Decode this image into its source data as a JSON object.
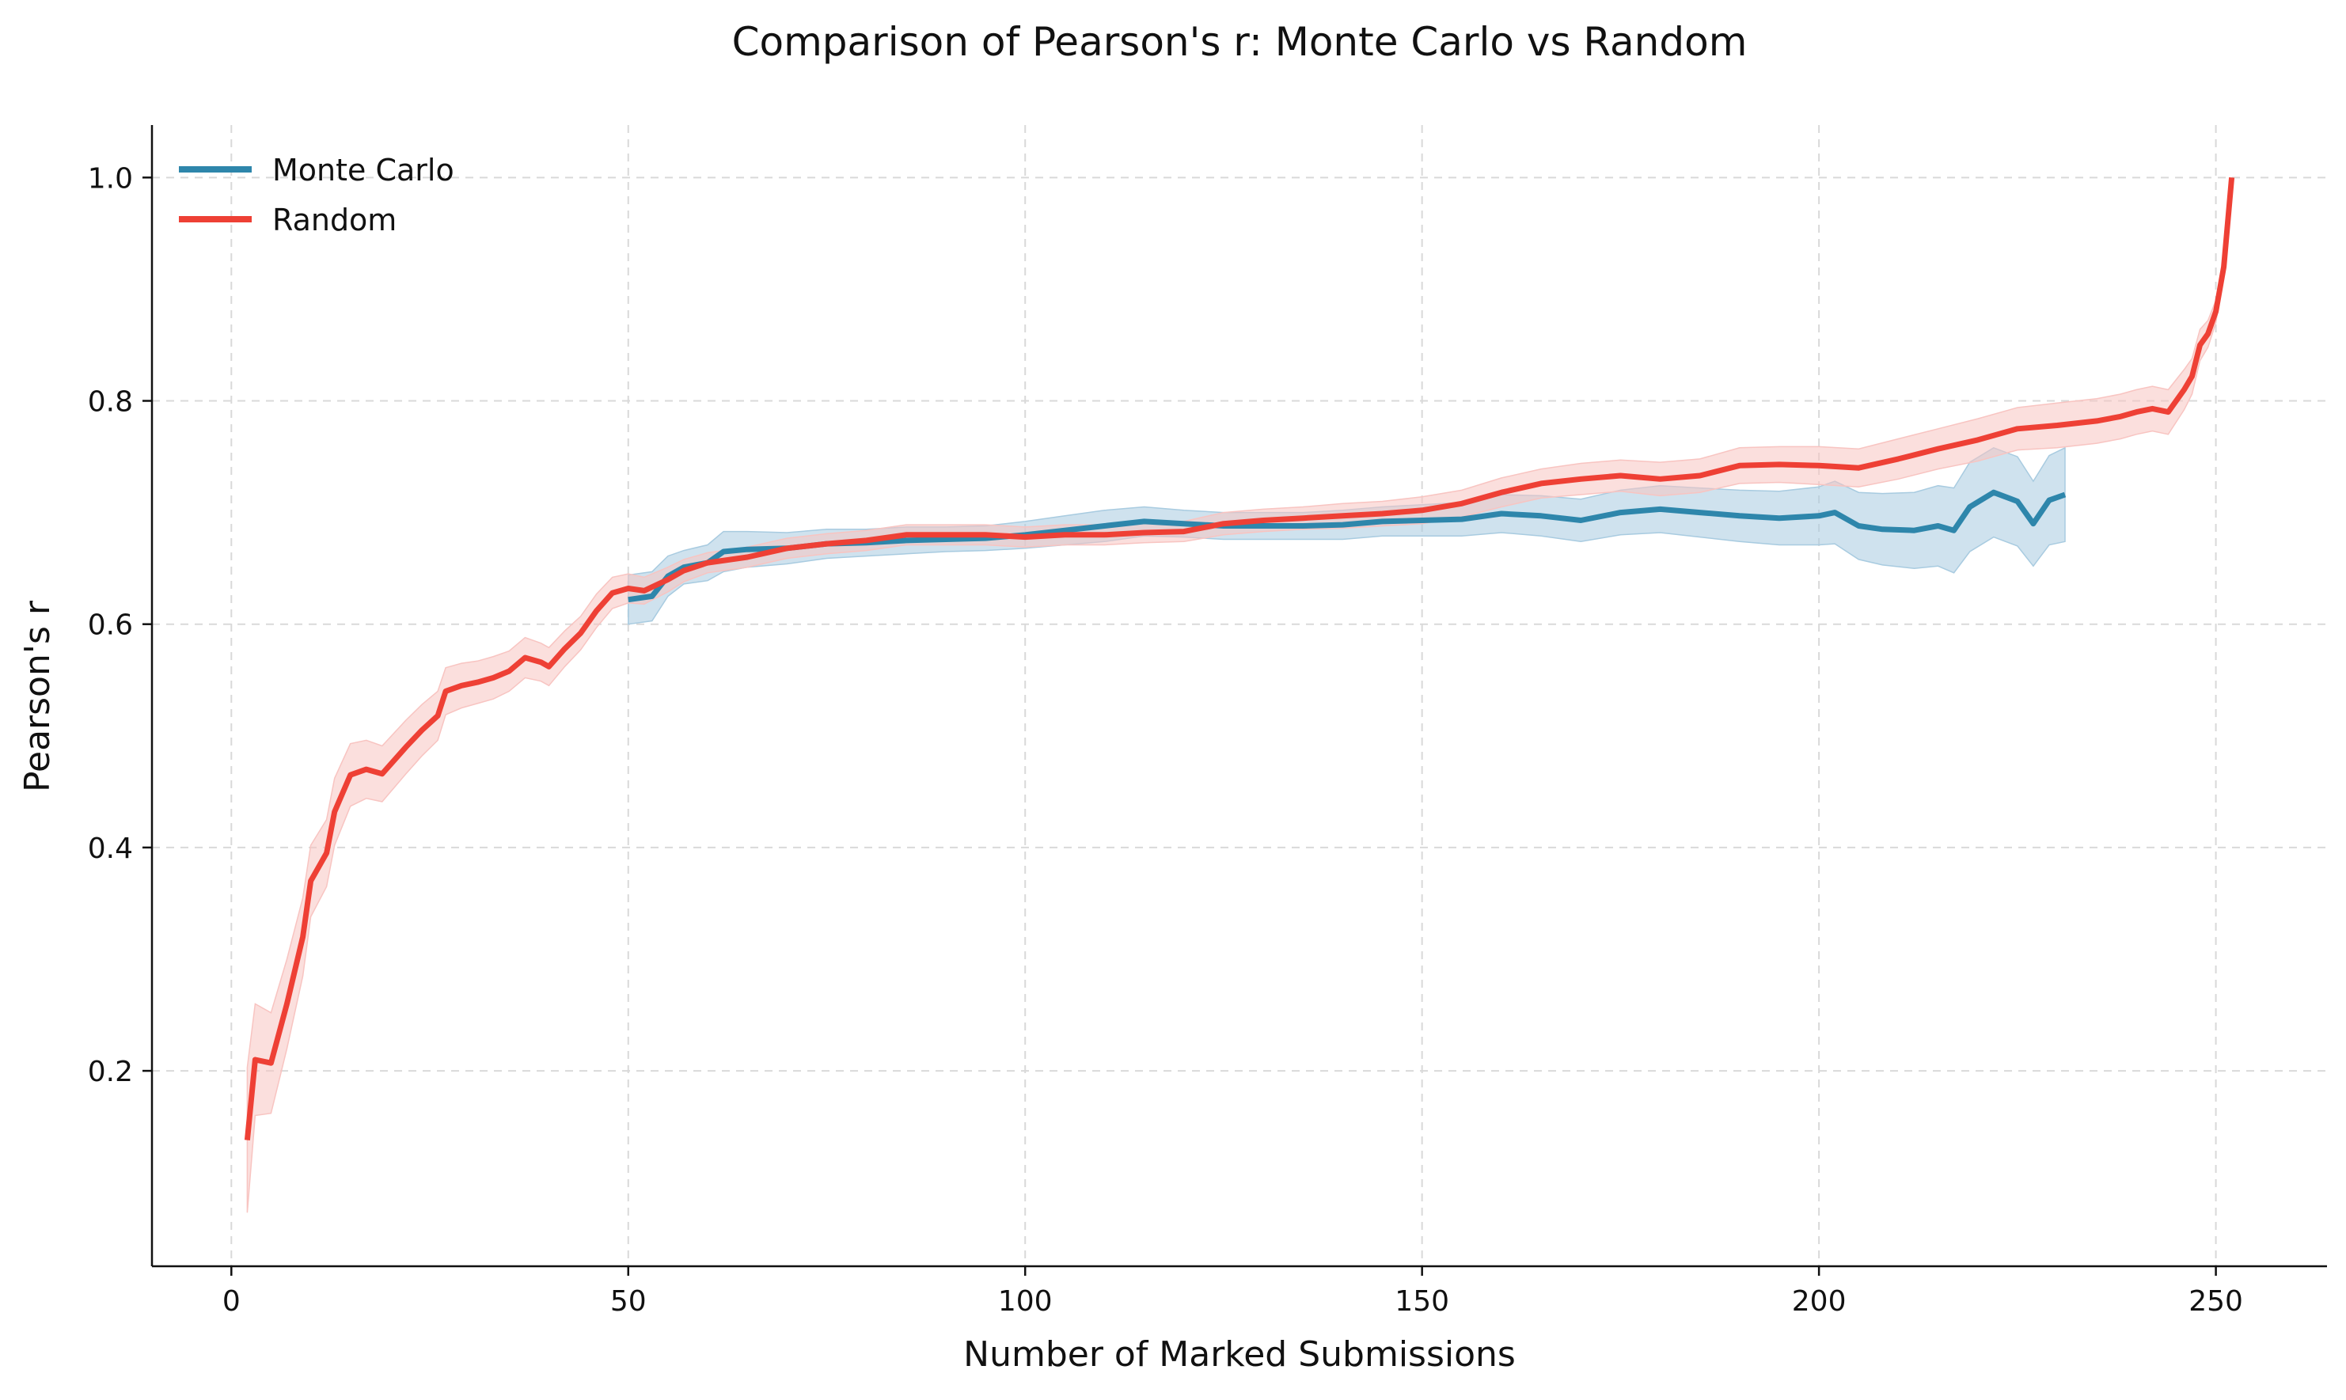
{
  "chart_data": {
    "type": "line",
    "title": "Comparison of Pearson's r: Monte Carlo vs Random",
    "xlabel": "Number of Marked Submissions",
    "ylabel": "Pearson's r",
    "xlim": [
      -10,
      264
    ],
    "ylim": [
      0.025,
      1.047
    ],
    "xticks": [
      0,
      50,
      100,
      150,
      200,
      250
    ],
    "yticks": [
      0.2,
      0.4,
      0.6,
      0.8,
      1.0
    ],
    "xtick_labels": [
      "0",
      "50",
      "100",
      "150",
      "200",
      "250"
    ],
    "ytick_labels": [
      "0.2",
      "0.4",
      "0.6",
      "0.8",
      "1.0"
    ],
    "grid": true,
    "legend_position": "top-left",
    "series": [
      {
        "name": "Monte Carlo",
        "color": "#2e86ab",
        "band_color": "#a8cbe0",
        "points": [
          [
            50,
            0.622
          ],
          [
            53,
            0.625
          ],
          [
            55,
            0.643
          ],
          [
            57,
            0.651
          ],
          [
            60,
            0.655
          ],
          [
            62,
            0.665
          ],
          [
            65,
            0.667
          ],
          [
            70,
            0.668
          ],
          [
            75,
            0.672
          ],
          [
            80,
            0.673
          ],
          [
            85,
            0.675
          ],
          [
            90,
            0.676
          ],
          [
            95,
            0.677
          ],
          [
            100,
            0.68
          ],
          [
            105,
            0.684
          ],
          [
            110,
            0.688
          ],
          [
            115,
            0.692
          ],
          [
            120,
            0.69
          ],
          [
            125,
            0.688
          ],
          [
            130,
            0.688
          ],
          [
            135,
            0.688
          ],
          [
            140,
            0.689
          ],
          [
            145,
            0.692
          ],
          [
            150,
            0.693
          ],
          [
            155,
            0.694
          ],
          [
            160,
            0.699
          ],
          [
            165,
            0.697
          ],
          [
            170,
            0.693
          ],
          [
            175,
            0.7
          ],
          [
            180,
            0.703
          ],
          [
            185,
            0.7
          ],
          [
            190,
            0.697
          ],
          [
            195,
            0.695
          ],
          [
            200,
            0.697
          ],
          [
            202,
            0.7
          ],
          [
            205,
            0.688
          ],
          [
            208,
            0.685
          ],
          [
            212,
            0.684
          ],
          [
            215,
            0.688
          ],
          [
            217,
            0.684
          ],
          [
            219,
            0.705
          ],
          [
            222,
            0.718
          ],
          [
            225,
            0.71
          ],
          [
            227,
            0.69
          ],
          [
            229,
            0.711
          ],
          [
            231,
            0.716
          ]
        ],
        "band": [
          0.022,
          0.022,
          0.018,
          0.015,
          0.016,
          0.018,
          0.016,
          0.014,
          0.013,
          0.012,
          0.012,
          0.011,
          0.011,
          0.012,
          0.013,
          0.014,
          0.013,
          0.012,
          0.012,
          0.012,
          0.012,
          0.013,
          0.013,
          0.014,
          0.015,
          0.017,
          0.018,
          0.019,
          0.02,
          0.021,
          0.022,
          0.023,
          0.024,
          0.026,
          0.028,
          0.03,
          0.032,
          0.034,
          0.036,
          0.038,
          0.04,
          0.04,
          0.04,
          0.038,
          0.04,
          0.042
        ]
      },
      {
        "name": "Random",
        "color": "#ee4035",
        "band_color": "#f8c4c1",
        "points": [
          [
            2,
            0.138
          ],
          [
            3,
            0.21
          ],
          [
            5,
            0.207
          ],
          [
            7,
            0.26
          ],
          [
            9,
            0.32
          ],
          [
            10,
            0.37
          ],
          [
            12,
            0.395
          ],
          [
            13,
            0.432
          ],
          [
            15,
            0.465
          ],
          [
            17,
            0.47
          ],
          [
            19,
            0.466
          ],
          [
            22,
            0.49
          ],
          [
            24,
            0.505
          ],
          [
            26,
            0.518
          ],
          [
            27,
            0.54
          ],
          [
            29,
            0.545
          ],
          [
            31,
            0.548
          ],
          [
            33,
            0.552
          ],
          [
            35,
            0.558
          ],
          [
            37,
            0.57
          ],
          [
            39,
            0.566
          ],
          [
            40,
            0.562
          ],
          [
            42,
            0.578
          ],
          [
            44,
            0.592
          ],
          [
            46,
            0.612
          ],
          [
            48,
            0.628
          ],
          [
            50,
            0.632
          ],
          [
            52,
            0.63
          ],
          [
            55,
            0.64
          ],
          [
            57,
            0.648
          ],
          [
            60,
            0.655
          ],
          [
            65,
            0.66
          ],
          [
            70,
            0.668
          ],
          [
            75,
            0.672
          ],
          [
            80,
            0.675
          ],
          [
            85,
            0.68
          ],
          [
            90,
            0.68
          ],
          [
            95,
            0.68
          ],
          [
            100,
            0.678
          ],
          [
            105,
            0.68
          ],
          [
            110,
            0.68
          ],
          [
            115,
            0.682
          ],
          [
            120,
            0.683
          ],
          [
            125,
            0.69
          ],
          [
            130,
            0.693
          ],
          [
            135,
            0.695
          ],
          [
            140,
            0.697
          ],
          [
            145,
            0.699
          ],
          [
            150,
            0.702
          ],
          [
            155,
            0.708
          ],
          [
            160,
            0.718
          ],
          [
            165,
            0.726
          ],
          [
            170,
            0.73
          ],
          [
            175,
            0.733
          ],
          [
            180,
            0.73
          ],
          [
            185,
            0.733
          ],
          [
            190,
            0.742
          ],
          [
            195,
            0.743
          ],
          [
            200,
            0.742
          ],
          [
            205,
            0.74
          ],
          [
            210,
            0.748
          ],
          [
            215,
            0.757
          ],
          [
            220,
            0.765
          ],
          [
            225,
            0.775
          ],
          [
            230,
            0.778
          ],
          [
            235,
            0.782
          ],
          [
            238,
            0.786
          ],
          [
            240,
            0.79
          ],
          [
            242,
            0.793
          ],
          [
            244,
            0.79
          ],
          [
            246,
            0.81
          ],
          [
            247,
            0.822
          ],
          [
            248,
            0.85
          ],
          [
            249,
            0.86
          ],
          [
            250,
            0.88
          ],
          [
            251,
            0.92
          ],
          [
            252,
            1.0
          ]
        ],
        "band": [
          0.065,
          0.05,
          0.045,
          0.04,
          0.035,
          0.032,
          0.03,
          0.03,
          0.028,
          0.026,
          0.025,
          0.024,
          0.023,
          0.022,
          0.021,
          0.02,
          0.019,
          0.019,
          0.018,
          0.018,
          0.017,
          0.017,
          0.016,
          0.015,
          0.015,
          0.014,
          0.013,
          0.012,
          0.011,
          0.01,
          0.009,
          0.009,
          0.009,
          0.009,
          0.009,
          0.009,
          0.009,
          0.009,
          0.009,
          0.009,
          0.009,
          0.009,
          0.009,
          0.01,
          0.01,
          0.01,
          0.011,
          0.011,
          0.012,
          0.012,
          0.013,
          0.013,
          0.014,
          0.014,
          0.015,
          0.015,
          0.016,
          0.016,
          0.017,
          0.017,
          0.018,
          0.018,
          0.019,
          0.019,
          0.02,
          0.02,
          0.02,
          0.02,
          0.02,
          0.02,
          0.018,
          0.016,
          0.014,
          0.012,
          0.01,
          0.006,
          0.0
        ]
      }
    ]
  }
}
